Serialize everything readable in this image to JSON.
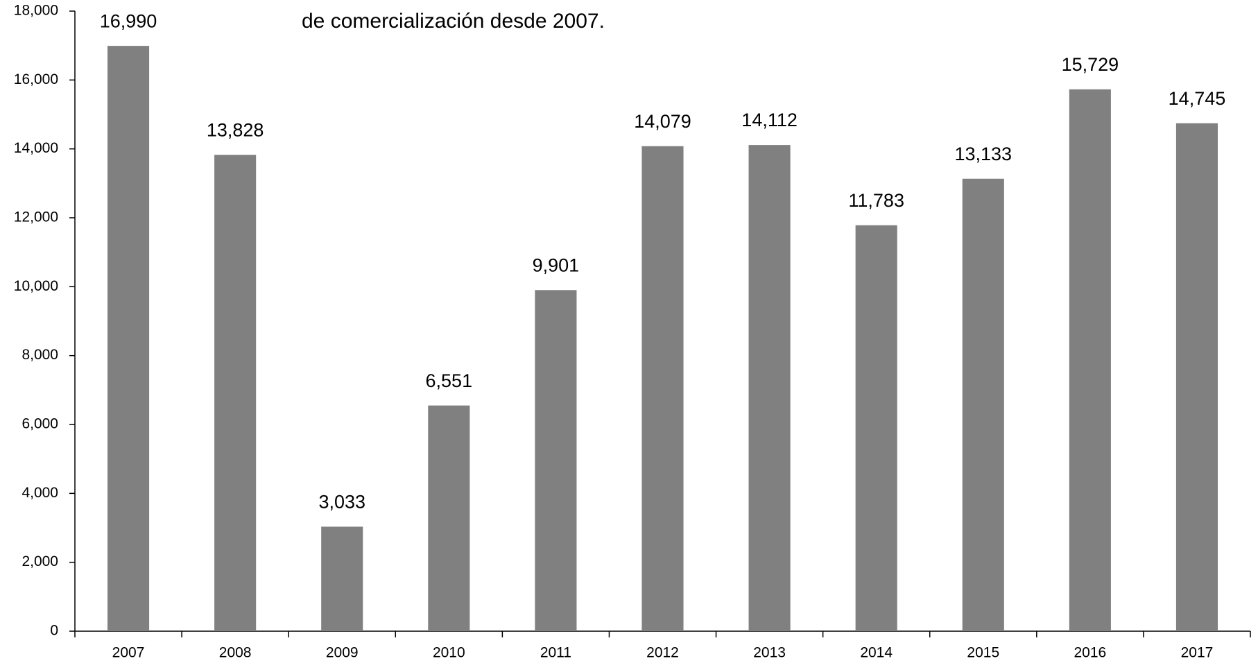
{
  "chart_data": {
    "type": "bar",
    "title": "de comercialización desde 2007.",
    "categories": [
      "2007",
      "2008",
      "2009",
      "2010",
      "2011",
      "2012",
      "2013",
      "2014",
      "2015",
      "2016",
      "2017"
    ],
    "values": [
      16990,
      13828,
      3033,
      6551,
      9901,
      14079,
      14112,
      11783,
      13133,
      15729,
      14745
    ],
    "value_labels": [
      "16,990",
      "13,828",
      "3,033",
      "6,551",
      "9,901",
      "14,079",
      "14,112",
      "11,783",
      "13,133",
      "15,729",
      "14,745"
    ],
    "color": "#808080",
    "ylim": [
      0,
      18000
    ],
    "yticks": [
      0,
      {
        "value": 2000,
        "label": "2,000"
      },
      {
        "value": 4000,
        "label": "4,000"
      },
      {
        "value": 6000,
        "label": "6,000"
      },
      {
        "value": 8000,
        "label": "8,000"
      },
      {
        "value": 10000,
        "label": "10,000"
      },
      {
        "value": 12000,
        "label": "12,000"
      },
      {
        "value": 14000,
        "label": "14,000"
      },
      {
        "value": 16000,
        "label": "16,000"
      },
      {
        "value": 18000,
        "label": "18,000"
      }
    ],
    "grid": false
  }
}
